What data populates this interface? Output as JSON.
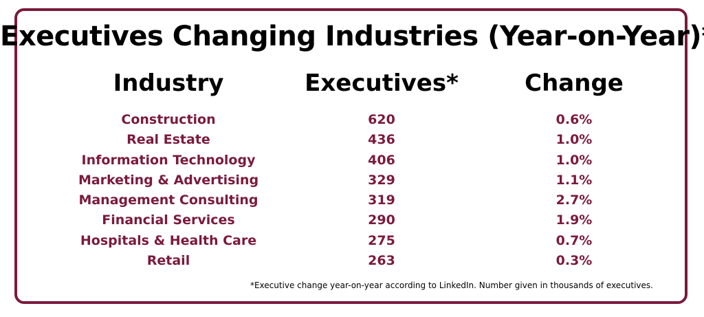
{
  "chart_data": {
    "type": "table",
    "title": "Executives Changing Industries (Year-on-Year)*",
    "columns": [
      "Industry",
      "Executives*",
      "Change"
    ],
    "rows": [
      {
        "industry": "Construction",
        "executives": "620",
        "change": "0.6%"
      },
      {
        "industry": "Real Estate",
        "executives": "436",
        "change": "1.0%"
      },
      {
        "industry": "Information Technology",
        "executives": "406",
        "change": "1.0%"
      },
      {
        "industry": "Marketing & Advertising",
        "executives": "329",
        "change": "1.1%"
      },
      {
        "industry": "Management Consulting",
        "executives": "319",
        "change": "2.7%"
      },
      {
        "industry": "Financial Services",
        "executives": "290",
        "change": "1.9%"
      },
      {
        "industry": "Hospitals & Health Care",
        "executives": "275",
        "change": "0.7%"
      },
      {
        "industry": "Retail",
        "executives": "263",
        "change": "0.3%"
      }
    ],
    "footnote": "*Executive change year-on-year according to LinkedIn. Number given in thousands of executives."
  },
  "colors": {
    "accent": "#7a1a3c",
    "text": "#000000",
    "background": "#ffffff"
  }
}
